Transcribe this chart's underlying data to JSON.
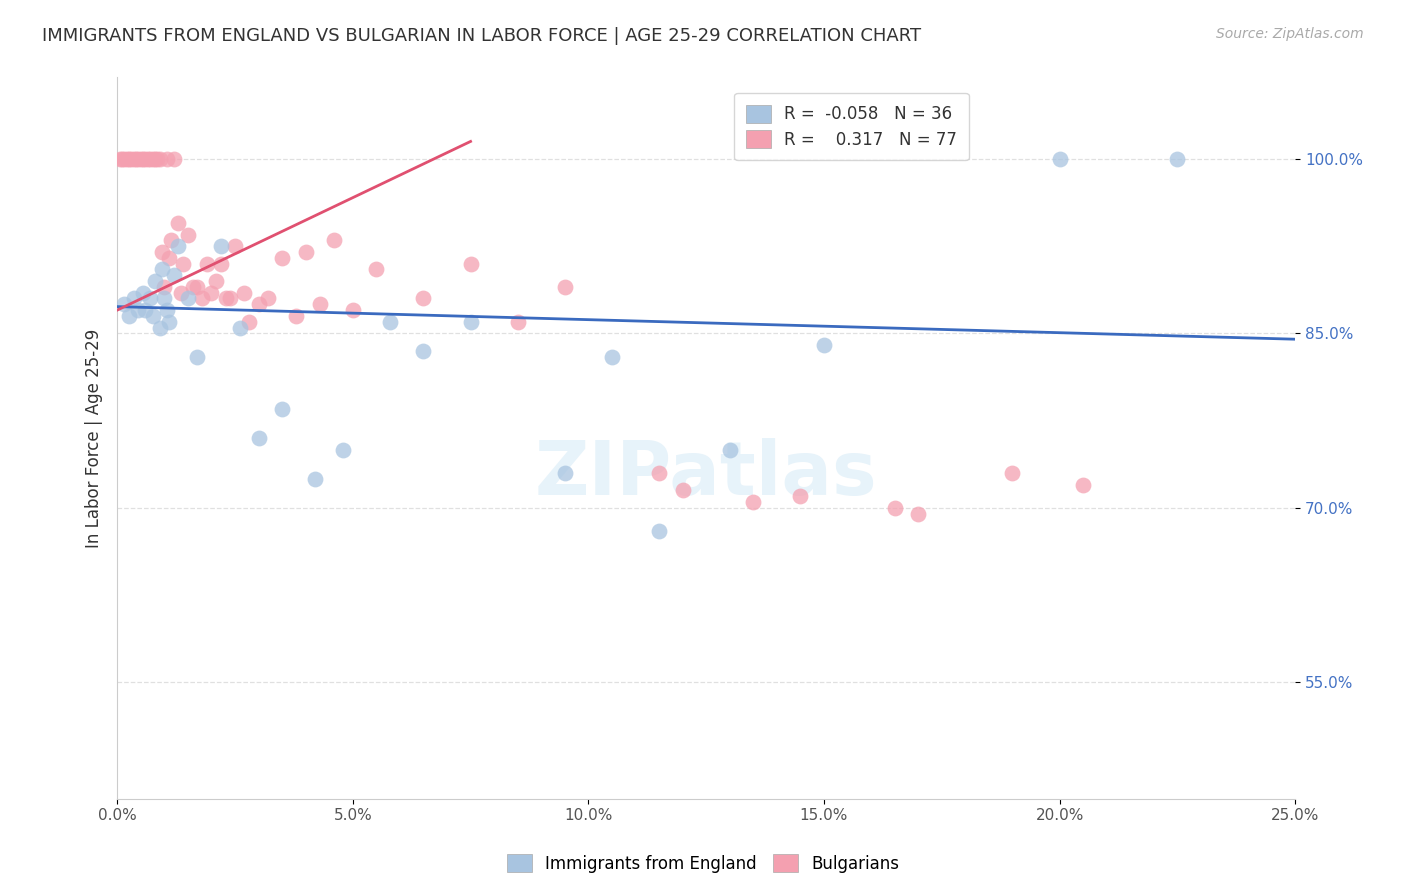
{
  "title": "IMMIGRANTS FROM ENGLAND VS BULGARIAN IN LABOR FORCE | AGE 25-29 CORRELATION CHART",
  "source": "Source: ZipAtlas.com",
  "xlabel_vals": [
    0.0,
    5.0,
    10.0,
    15.0,
    20.0,
    25.0
  ],
  "ylabel_vals": [
    55.0,
    70.0,
    85.0,
    100.0
  ],
  "ylabel_label": "In Labor Force | Age 25-29",
  "ylim": [
    45.0,
    107.0
  ],
  "xlim": [
    0.0,
    25.0
  ],
  "england_R": -0.058,
  "england_N": 36,
  "bulgarian_R": 0.317,
  "bulgarian_N": 77,
  "england_color": "#a8c4e0",
  "bulgarian_color": "#f4a0b0",
  "england_line_color": "#3a6abf",
  "bulgarian_line_color": "#e05070",
  "england_line_x0": 0.0,
  "england_line_y0": 87.3,
  "england_line_x1": 25.0,
  "england_line_y1": 84.5,
  "bulgarian_line_x0": 0.0,
  "bulgarian_line_y0": 87.0,
  "bulgarian_line_x1": 7.5,
  "bulgarian_line_y1": 101.5,
  "england_x": [
    0.15,
    0.25,
    0.35,
    0.45,
    0.55,
    0.6,
    0.7,
    0.75,
    0.8,
    0.9,
    0.95,
    1.0,
    1.05,
    1.1,
    1.2,
    1.3,
    1.5,
    1.7,
    2.2,
    2.6,
    3.0,
    3.5,
    4.2,
    4.8,
    5.8,
    6.5,
    7.5,
    9.5,
    10.5,
    11.5,
    13.0,
    15.0,
    20.0,
    22.5
  ],
  "england_y": [
    87.5,
    86.5,
    88.0,
    87.0,
    88.5,
    87.0,
    88.0,
    86.5,
    89.5,
    85.5,
    90.5,
    88.0,
    87.0,
    86.0,
    90.0,
    92.5,
    88.0,
    83.0,
    92.5,
    85.5,
    76.0,
    78.5,
    72.5,
    75.0,
    86.0,
    83.5,
    86.0,
    73.0,
    83.0,
    68.0,
    75.0,
    84.0,
    100.0,
    100.0
  ],
  "bulgarian_x": [
    0.05,
    0.1,
    0.15,
    0.2,
    0.25,
    0.3,
    0.35,
    0.4,
    0.45,
    0.5,
    0.55,
    0.6,
    0.65,
    0.7,
    0.75,
    0.8,
    0.85,
    0.9,
    0.95,
    1.0,
    1.05,
    1.1,
    1.15,
    1.2,
    1.3,
    1.35,
    1.4,
    1.5,
    1.6,
    1.7,
    1.8,
    1.9,
    2.0,
    2.1,
    2.2,
    2.3,
    2.4,
    2.5,
    2.7,
    2.8,
    3.0,
    3.2,
    3.5,
    3.8,
    4.0,
    4.3,
    4.6,
    5.0,
    5.5,
    6.5,
    7.5,
    8.5,
    9.5,
    11.5,
    12.0,
    13.5,
    14.5,
    16.5,
    17.0,
    19.0,
    20.5
  ],
  "bulgarian_y": [
    100.0,
    100.0,
    100.0,
    100.0,
    100.0,
    100.0,
    100.0,
    100.0,
    100.0,
    100.0,
    100.0,
    100.0,
    100.0,
    100.0,
    100.0,
    100.0,
    100.0,
    100.0,
    92.0,
    89.0,
    100.0,
    91.5,
    93.0,
    100.0,
    94.5,
    88.5,
    91.0,
    93.5,
    89.0,
    89.0,
    88.0,
    91.0,
    88.5,
    89.5,
    91.0,
    88.0,
    88.0,
    92.5,
    88.5,
    86.0,
    87.5,
    88.0,
    91.5,
    86.5,
    92.0,
    87.5,
    93.0,
    87.0,
    90.5,
    88.0,
    91.0,
    86.0,
    89.0,
    73.0,
    71.5,
    70.5,
    71.0,
    70.0,
    69.5,
    73.0,
    72.0
  ],
  "watermark_text": "ZIPatlas",
  "background_color": "#ffffff",
  "grid_color": "#dddddd"
}
